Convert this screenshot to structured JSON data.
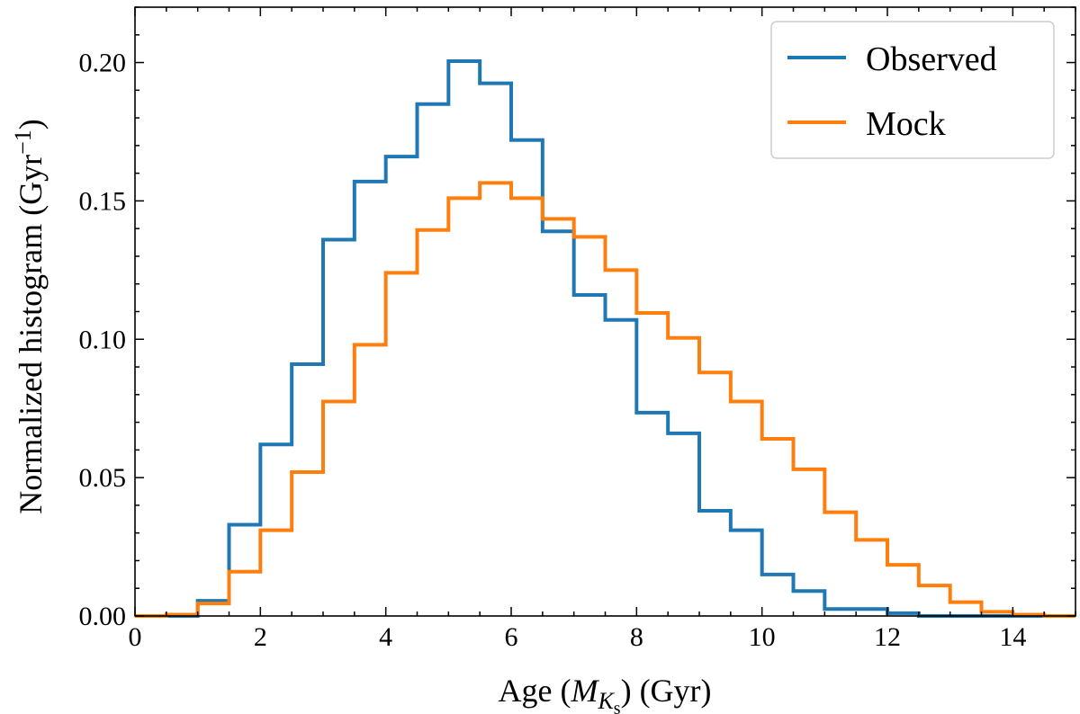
{
  "chart_data": {
    "type": "line",
    "drawstyle": "steps",
    "xlabel": {
      "prefix": "Age  (",
      "symbol": "M",
      "subscript": "K",
      "subsubscript": "s",
      "suffix": ")  (Gyr)"
    },
    "ylabel": {
      "text": "Normalized histogram  (Gyr",
      "superscript": "−1",
      "suffix": ")"
    },
    "xlim": [
      0,
      15
    ],
    "ylim": [
      0,
      0.22
    ],
    "xticks": [
      0,
      2,
      4,
      6,
      8,
      10,
      12,
      14
    ],
    "xtick_labels": [
      "0",
      "2",
      "4",
      "6",
      "8",
      "10",
      "12",
      "14"
    ],
    "yticks": [
      0.0,
      0.05,
      0.1,
      0.15,
      0.2
    ],
    "ytick_labels": [
      "0.00",
      "0.05",
      "0.10",
      "0.15",
      "0.20"
    ],
    "bin_edges": [
      0,
      0.5,
      1,
      1.5,
      2,
      2.5,
      3,
      3.5,
      4,
      4.5,
      5,
      5.5,
      6,
      6.5,
      7,
      7.5,
      8,
      8.5,
      9,
      9.5,
      10,
      10.5,
      11,
      11.5,
      12,
      12.5,
      13,
      13.5,
      14,
      14.5,
      15
    ],
    "legend_position": "top-right",
    "series": [
      {
        "name": "Observed",
        "color": "#1f77b4",
        "values": [
          0,
          0,
          0.0055,
          0.033,
          0.062,
          0.091,
          0.136,
          0.157,
          0.166,
          0.185,
          0.2005,
          0.1925,
          0.172,
          0.139,
          0.116,
          0.107,
          0.0735,
          0.066,
          0.038,
          0.031,
          0.015,
          0.009,
          0.0025,
          0.0025,
          0.001,
          0,
          0,
          0,
          0,
          0
        ]
      },
      {
        "name": "Mock",
        "color": "#ff7f0e",
        "values": [
          0,
          0.0005,
          0.0045,
          0.016,
          0.031,
          0.052,
          0.0775,
          0.098,
          0.124,
          0.1395,
          0.151,
          0.1565,
          0.151,
          0.1435,
          0.137,
          0.125,
          0.1095,
          0.1005,
          0.088,
          0.0775,
          0.064,
          0.053,
          0.0375,
          0.0275,
          0.0185,
          0.011,
          0.005,
          0.0015,
          0.0005,
          0
        ]
      }
    ]
  }
}
